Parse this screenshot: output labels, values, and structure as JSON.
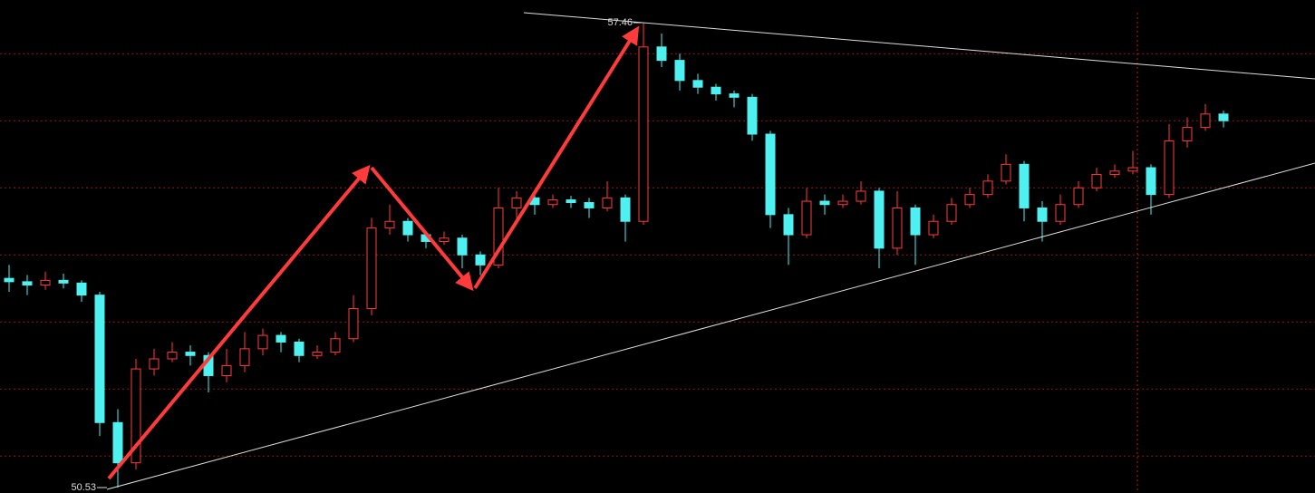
{
  "chart_data": {
    "type": "candlestick",
    "up_color": "#ff3b3b",
    "down_color": "#4ff0f0",
    "grid_color": "#8a1a1a",
    "ylim": [
      50.45,
      57.8
    ],
    "xlim": [
      -0.5,
      72.05
    ],
    "yticks": [
      51,
      52,
      53,
      54,
      55,
      56,
      57
    ],
    "grid": true,
    "high_label": "57.46",
    "low_label": "50.53",
    "open": [
      53.65,
      53.6,
      53.55,
      53.62,
      53.58,
      53.4,
      51.5,
      50.9,
      52.3,
      52.45,
      52.55,
      52.5,
      52.2,
      52.35,
      52.6,
      52.8,
      52.7,
      52.5,
      52.55,
      52.75,
      53.2,
      54.4,
      54.5,
      54.3,
      54.2,
      54.25,
      54.0,
      53.85,
      54.7,
      54.85,
      54.75,
      54.82,
      54.78,
      54.7,
      54.85,
      54.5,
      57.1,
      56.9,
      56.6,
      56.5,
      56.4,
      56.35,
      55.8,
      54.6,
      54.3,
      54.8,
      54.75,
      54.8,
      54.95,
      54.1,
      54.7,
      54.3,
      54.5,
      54.75,
      54.9,
      55.1,
      55.35,
      54.7,
      54.5,
      54.75,
      55.0,
      55.2,
      55.25,
      55.3,
      54.9,
      55.7,
      55.9,
      56.1
    ],
    "high": [
      53.85,
      53.7,
      53.75,
      53.72,
      53.62,
      53.45,
      51.7,
      52.45,
      52.6,
      52.7,
      52.65,
      52.55,
      52.6,
      52.85,
      52.9,
      52.85,
      52.75,
      52.65,
      52.85,
      53.4,
      54.55,
      54.75,
      54.55,
      54.35,
      54.35,
      54.3,
      54.05,
      55.0,
      54.95,
      54.9,
      54.9,
      54.88,
      54.85,
      55.1,
      54.9,
      57.46,
      57.3,
      57.0,
      56.7,
      56.55,
      56.45,
      56.4,
      55.85,
      54.7,
      55.0,
      54.9,
      54.9,
      55.1,
      55.0,
      54.95,
      54.75,
      54.6,
      54.85,
      55.0,
      55.2,
      55.5,
      55.4,
      54.8,
      54.9,
      55.1,
      55.3,
      55.35,
      55.55,
      55.35,
      55.95,
      56.05,
      56.25,
      56.15
    ],
    "low": [
      53.45,
      53.4,
      53.48,
      53.5,
      53.3,
      51.3,
      50.53,
      50.8,
      52.2,
      52.4,
      52.35,
      51.95,
      52.1,
      52.25,
      52.5,
      52.55,
      52.4,
      52.45,
      52.5,
      52.7,
      53.1,
      54.3,
      54.2,
      54.1,
      54.15,
      53.8,
      53.7,
      53.8,
      54.55,
      54.6,
      54.7,
      54.7,
      54.55,
      54.65,
      54.2,
      54.45,
      56.8,
      56.45,
      56.4,
      56.3,
      56.2,
      55.7,
      54.4,
      53.85,
      54.25,
      54.6,
      54.7,
      54.75,
      53.8,
      54.0,
      53.85,
      54.25,
      54.45,
      54.7,
      54.85,
      55.05,
      54.5,
      54.2,
      54.45,
      54.7,
      54.95,
      55.15,
      55.2,
      54.6,
      54.85,
      55.6,
      55.85,
      55.9
    ],
    "close": [
      53.6,
      53.55,
      53.62,
      53.58,
      53.4,
      51.5,
      50.9,
      52.3,
      52.45,
      52.55,
      52.5,
      52.2,
      52.35,
      52.6,
      52.8,
      52.7,
      52.5,
      52.55,
      52.75,
      53.2,
      54.4,
      54.5,
      54.3,
      54.2,
      54.25,
      54.0,
      53.85,
      54.7,
      54.85,
      54.75,
      54.82,
      54.78,
      54.7,
      54.85,
      54.5,
      57.1,
      56.9,
      56.6,
      56.5,
      56.4,
      56.35,
      55.8,
      54.6,
      54.3,
      54.8,
      54.75,
      54.8,
      54.95,
      54.1,
      54.7,
      54.3,
      54.5,
      54.75,
      54.9,
      55.1,
      55.35,
      54.7,
      54.5,
      54.75,
      55.0,
      55.2,
      55.25,
      55.3,
      54.9,
      55.7,
      55.9,
      56.1,
      56.0
    ]
  }
}
